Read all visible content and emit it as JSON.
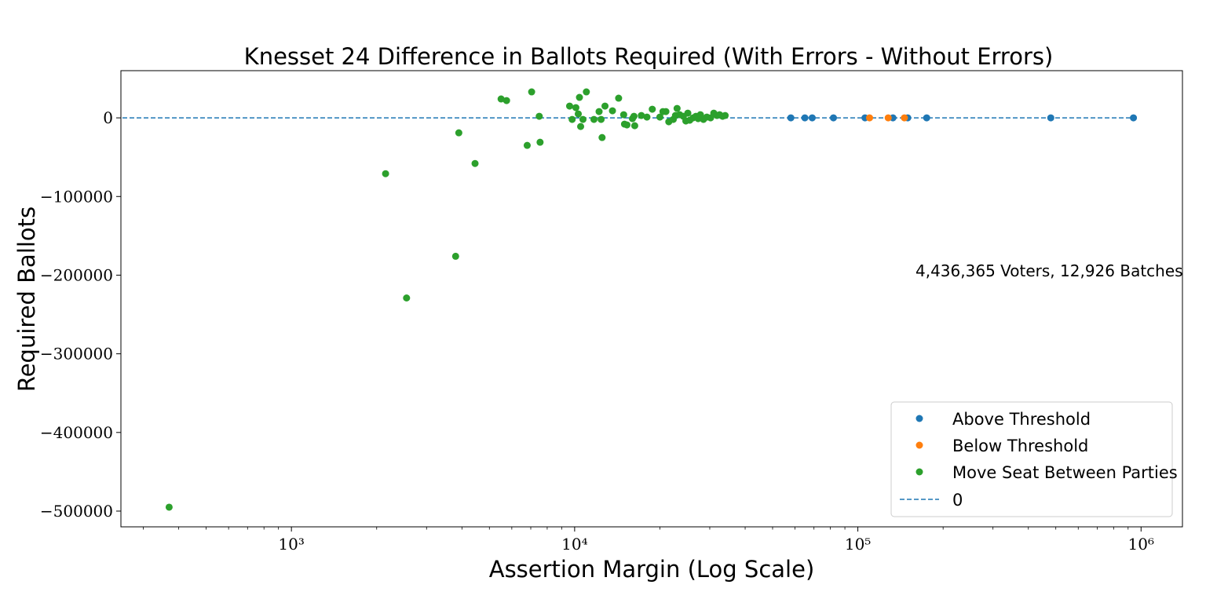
{
  "chart_data": {
    "type": "scatter",
    "title": "Knesset 24 Difference in Ballots Required (With Errors - Without Errors)",
    "xlabel": "Assertion Margin (Log Scale)",
    "ylabel": "Required Ballots",
    "xscale": "log",
    "xlim": [
      250,
      1400000
    ],
    "ylim": [
      -520000,
      60000
    ],
    "x_ticks": [
      {
        "value": 1000,
        "label": "10³"
      },
      {
        "value": 10000,
        "label": "10⁴"
      },
      {
        "value": 100000,
        "label": "10⁵"
      },
      {
        "value": 1000000,
        "label": "10⁶"
      }
    ],
    "y_ticks": [
      {
        "value": 0,
        "label": "0"
      },
      {
        "value": -100000,
        "label": "−100000"
      },
      {
        "value": -200000,
        "label": "−200000"
      },
      {
        "value": -300000,
        "label": "−300000"
      },
      {
        "value": -400000,
        "label": "−400000"
      },
      {
        "value": -500000,
        "label": "−500000"
      }
    ],
    "grid": false,
    "annotation": "4,436,365 Voters, 12,926 Batches",
    "legend_position": "lower-right",
    "reference_line": {
      "y": 0,
      "label": "0",
      "color": "#1f77b4",
      "style": "dashed"
    },
    "series": [
      {
        "name": "Above Threshold",
        "color": "#1f77b4",
        "points": [
          [
            58000,
            0
          ],
          [
            65000,
            0
          ],
          [
            69000,
            0
          ],
          [
            82000,
            0
          ],
          [
            106000,
            0
          ],
          [
            133000,
            0
          ],
          [
            150000,
            0
          ],
          [
            175000,
            0
          ],
          [
            480000,
            0
          ],
          [
            940000,
            0
          ]
        ]
      },
      {
        "name": "Below Threshold",
        "color": "#ff7f0e",
        "points": [
          [
            110000,
            0
          ],
          [
            128000,
            0
          ],
          [
            146000,
            0
          ]
        ]
      },
      {
        "name": "Move Seat Between Parties",
        "color": "#2ca02c",
        "points": [
          [
            370,
            -495000
          ],
          [
            2150,
            -71000
          ],
          [
            2550,
            -229000
          ],
          [
            3800,
            -176000
          ],
          [
            3900,
            -19000
          ],
          [
            4450,
            -58000
          ],
          [
            5500,
            24000
          ],
          [
            5750,
            22000
          ],
          [
            6800,
            -35000
          ],
          [
            7050,
            33000
          ],
          [
            7500,
            2000
          ],
          [
            7550,
            -31000
          ],
          [
            9600,
            15000
          ],
          [
            9800,
            -2000
          ],
          [
            10100,
            13000
          ],
          [
            10300,
            5000
          ],
          [
            10400,
            26000
          ],
          [
            10500,
            -11000
          ],
          [
            10700,
            -2000
          ],
          [
            11000,
            33000
          ],
          [
            11700,
            -2000
          ],
          [
            12200,
            8000
          ],
          [
            12400,
            -2000
          ],
          [
            12500,
            -25000
          ],
          [
            12800,
            15000
          ],
          [
            13600,
            9000
          ],
          [
            14300,
            25000
          ],
          [
            14900,
            4000
          ],
          [
            15000,
            -8000
          ],
          [
            15300,
            -9000
          ],
          [
            16000,
            -1000
          ],
          [
            16200,
            2000
          ],
          [
            16300,
            -10000
          ],
          [
            17200,
            3000
          ],
          [
            18000,
            1000
          ],
          [
            18800,
            11000
          ],
          [
            20000,
            1000
          ],
          [
            20500,
            8000
          ],
          [
            21000,
            8000
          ],
          [
            21500,
            -5000
          ],
          [
            22300,
            -2000
          ],
          [
            22700,
            3000
          ],
          [
            23000,
            12000
          ],
          [
            23500,
            4000
          ],
          [
            24200,
            2000
          ],
          [
            24700,
            -4000
          ],
          [
            25100,
            6000
          ],
          [
            25500,
            -3000
          ],
          [
            26200,
            0
          ],
          [
            26800,
            2000
          ],
          [
            27300,
            -1000
          ],
          [
            27800,
            4000
          ],
          [
            28500,
            -2000
          ],
          [
            29300,
            1000
          ],
          [
            30200,
            0
          ],
          [
            31000,
            6000
          ],
          [
            31800,
            3000
          ],
          [
            32500,
            4000
          ],
          [
            33300,
            2000
          ],
          [
            34000,
            3000
          ]
        ]
      }
    ]
  }
}
